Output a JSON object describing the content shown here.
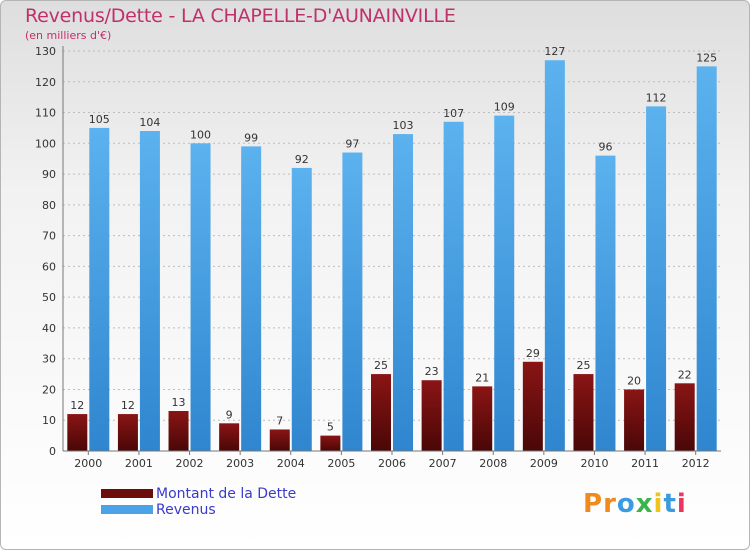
{
  "title": "Revenus/Dette - LA CHAPELLE-D'AUNAINVILLE",
  "subtitle": "(en milliers d'€)",
  "colors": {
    "title": "#c0306a",
    "debt": "#7a0f10",
    "revenue": "#4aa3e6",
    "legend_text": "#3a3acc"
  },
  "legend": [
    {
      "label": "Montant de la Dette",
      "color": "#6b0d0d"
    },
    {
      "label": "Revenus",
      "color": "#4aa3e6"
    }
  ],
  "logo": {
    "text": "Proxiti",
    "letter_colors": [
      "#f08a1c",
      "#f08a1c",
      "#3b9be0",
      "#39b54a",
      "#f0c419",
      "#3b9be0",
      "#e8365d"
    ]
  },
  "chart_data": {
    "type": "bar",
    "categories": [
      "2000",
      "2001",
      "2002",
      "2003",
      "2004",
      "2005",
      "2006",
      "2007",
      "2008",
      "2009",
      "2010",
      "2011",
      "2012"
    ],
    "series": [
      {
        "name": "Montant de la Dette",
        "values": [
          12,
          12,
          13,
          9,
          7,
          5,
          25,
          23,
          21,
          29,
          25,
          20,
          22
        ]
      },
      {
        "name": "Revenus",
        "values": [
          105,
          104,
          100,
          99,
          92,
          97,
          103,
          107,
          109,
          127,
          96,
          112,
          125
        ]
      }
    ],
    "y_ticks": [
      0,
      10,
      20,
      30,
      40,
      50,
      60,
      70,
      80,
      90,
      100,
      110,
      120,
      130
    ],
    "ylim": [
      0,
      130
    ],
    "grid": "horizontal dashed",
    "legend_position": "bottom-left"
  }
}
